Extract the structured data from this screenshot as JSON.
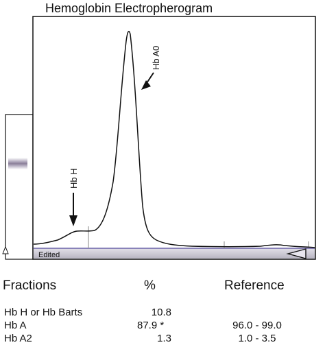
{
  "chart_data": {
    "type": "line",
    "title": "Hemoglobin Electropherogram",
    "xlabel": "",
    "ylabel": "",
    "annotations": [
      {
        "label": "Hb A0"
      },
      {
        "label": "Hb H"
      }
    ],
    "status_label": "Edited"
  },
  "table": {
    "headers": {
      "fractions": "Fractions",
      "percent": "%",
      "reference": "Reference"
    },
    "rows": [
      {
        "name": "Hb H or Hb Barts",
        "percent": "10.8",
        "reference": ""
      },
      {
        "name": "Hb A",
        "percent": "87.9 *",
        "reference": "96.0 - 99.0"
      },
      {
        "name": "Hb A2",
        "percent": "1.3",
        "reference": "1.0 - 3.5"
      }
    ]
  },
  "colors": {
    "trace": "#111111",
    "baseline_bar": "#c9c7cf",
    "baseline_line": "#6a62a8",
    "band": "#8a7f99"
  }
}
